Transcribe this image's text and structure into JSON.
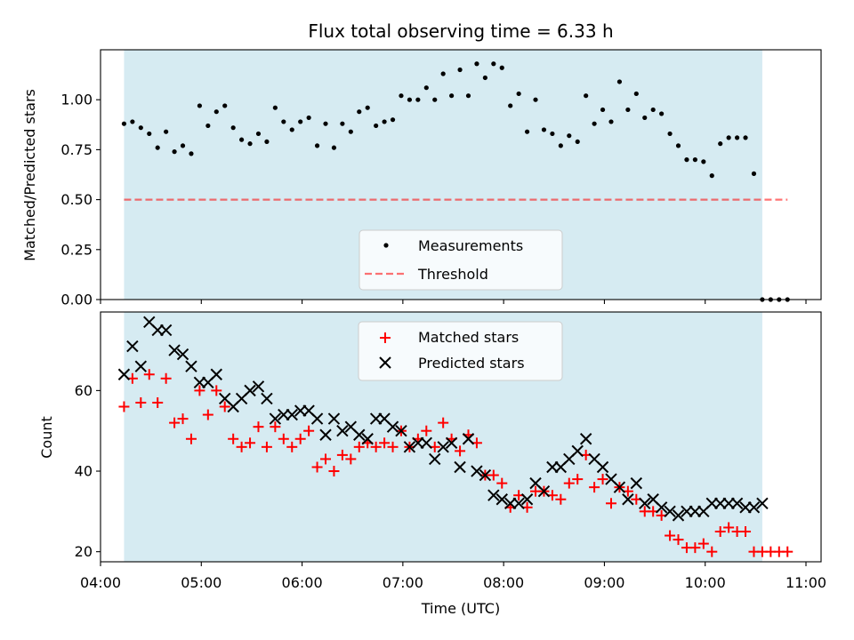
{
  "chart_data": [
    {
      "type": "scatter",
      "title": "Flux total observing time = 6.33 h",
      "ylabel": "Matched/Predicted stars",
      "xlabel": "",
      "x_unit": "time_utc",
      "xlim": [
        "04:00",
        "11:09"
      ],
      "ylim": [
        0,
        1.25
      ],
      "y_ticks": [
        "0.00",
        "0.25",
        "0.50",
        "0.75",
        "1.00"
      ],
      "x_ticks": [
        "04:00",
        "05:00",
        "06:00",
        "07:00",
        "08:00",
        "09:00",
        "10:00",
        "11:00"
      ],
      "observing_window": [
        "04:14",
        "10:34"
      ],
      "observing_window_color": "#add8e6",
      "grid": false,
      "legend": "bottom-center",
      "series": [
        {
          "name": "Measurements",
          "kind": "scatter",
          "marker": "dot",
          "color": "#000000",
          "x": [
            "04:14",
            "04:19",
            "04:24",
            "04:29",
            "04:34",
            "04:39",
            "04:44",
            "04:49",
            "04:54",
            "04:59",
            "05:04",
            "05:09",
            "05:14",
            "05:19",
            "05:24",
            "05:29",
            "05:34",
            "05:39",
            "05:44",
            "05:49",
            "05:54",
            "05:59",
            "06:04",
            "06:09",
            "06:14",
            "06:19",
            "06:24",
            "06:29",
            "06:34",
            "06:39",
            "06:44",
            "06:49",
            "06:54",
            "06:59",
            "07:04",
            "07:09",
            "07:14",
            "07:19",
            "07:24",
            "07:29",
            "07:34",
            "07:39",
            "07:44",
            "07:49",
            "07:54",
            "07:59",
            "08:04",
            "08:09",
            "08:14",
            "08:19",
            "08:24",
            "08:29",
            "08:34",
            "08:39",
            "08:44",
            "08:49",
            "08:54",
            "08:59",
            "09:04",
            "09:09",
            "09:14",
            "09:19",
            "09:24",
            "09:29",
            "09:34",
            "09:39",
            "09:44",
            "09:49",
            "09:54",
            "09:59",
            "10:04",
            "10:09",
            "10:14",
            "10:19",
            "10:24",
            "10:29",
            "10:34",
            "10:39",
            "10:44",
            "10:49"
          ],
          "y": [
            0.88,
            0.89,
            0.86,
            0.83,
            0.76,
            0.84,
            0.74,
            0.77,
            0.73,
            0.97,
            0.87,
            0.94,
            0.97,
            0.86,
            0.8,
            0.78,
            0.83,
            0.79,
            0.96,
            0.89,
            0.85,
            0.89,
            0.91,
            0.77,
            0.88,
            0.76,
            0.88,
            0.84,
            0.94,
            0.96,
            0.87,
            0.89,
            0.9,
            1.02,
            1.0,
            1.0,
            1.06,
            1.0,
            1.13,
            1.02,
            1.15,
            1.02,
            1.18,
            1.11,
            1.18,
            1.16,
            0.97,
            1.03,
            0.84,
            1.0,
            0.85,
            0.83,
            0.77,
            0.82,
            0.79,
            1.02,
            0.88,
            0.95,
            0.89,
            1.09,
            0.95,
            1.03,
            0.91,
            0.95,
            0.93,
            0.83,
            0.77,
            0.7,
            0.7,
            0.69,
            0.62,
            0.78,
            0.81,
            0.81,
            0.81,
            0.63,
            0.0,
            0.0,
            0.0,
            0.0
          ]
        },
        {
          "name": "Threshold",
          "kind": "line",
          "style": "dashed",
          "color": "#ff0000",
          "x": [
            "04:14",
            "10:49"
          ],
          "y": [
            0.5,
            0.5
          ]
        }
      ]
    },
    {
      "type": "scatter",
      "title": "",
      "ylabel": "Count",
      "xlabel": "Time (UTC)",
      "x_unit": "time_utc",
      "xlim": [
        "04:00",
        "11:09"
      ],
      "ylim": [
        17.5,
        79.5
      ],
      "y_ticks": [
        "20",
        "40",
        "60"
      ],
      "x_ticks": [
        "04:00",
        "05:00",
        "06:00",
        "07:00",
        "08:00",
        "09:00",
        "10:00",
        "11:00"
      ],
      "observing_window": [
        "04:14",
        "10:34"
      ],
      "observing_window_color": "#add8e6",
      "grid": false,
      "legend": "top-center",
      "series": [
        {
          "name": "Matched stars",
          "marker": "plus",
          "color": "#ff0000",
          "x": [
            "04:14",
            "04:19",
            "04:24",
            "04:29",
            "04:34",
            "04:39",
            "04:44",
            "04:49",
            "04:54",
            "04:59",
            "05:04",
            "05:09",
            "05:14",
            "05:19",
            "05:24",
            "05:29",
            "05:34",
            "05:39",
            "05:44",
            "05:49",
            "05:54",
            "05:59",
            "06:04",
            "06:09",
            "06:14",
            "06:19",
            "06:24",
            "06:29",
            "06:34",
            "06:39",
            "06:44",
            "06:49",
            "06:54",
            "06:59",
            "07:04",
            "07:09",
            "07:14",
            "07:19",
            "07:24",
            "07:29",
            "07:34",
            "07:39",
            "07:44",
            "07:49",
            "07:54",
            "07:59",
            "08:04",
            "08:09",
            "08:14",
            "08:19",
            "08:24",
            "08:29",
            "08:34",
            "08:39",
            "08:44",
            "08:49",
            "08:54",
            "08:59",
            "09:04",
            "09:09",
            "09:14",
            "09:19",
            "09:24",
            "09:29",
            "09:34",
            "09:39",
            "09:44",
            "09:49",
            "09:54",
            "09:59",
            "10:04",
            "10:09",
            "10:14",
            "10:19",
            "10:24",
            "10:29",
            "10:34",
            "10:39",
            "10:44",
            "10:49"
          ],
          "y": [
            56,
            63,
            57,
            64,
            57,
            63,
            52,
            53,
            48,
            60,
            54,
            60,
            56,
            48,
            46,
            47,
            51,
            46,
            51,
            48,
            46,
            48,
            50,
            41,
            43,
            40,
            44,
            43,
            46,
            47,
            46,
            47,
            46,
            50,
            46,
            48,
            50,
            46,
            52,
            48,
            45,
            49,
            47,
            39,
            39,
            37,
            31,
            34,
            31,
            35,
            35,
            34,
            33,
            37,
            38,
            44,
            36,
            38,
            32,
            36,
            35,
            33,
            30,
            30,
            29,
            24,
            23,
            21,
            21,
            22,
            20,
            25,
            26,
            25,
            25,
            20,
            20,
            20,
            20,
            20
          ]
        },
        {
          "name": "Predicted stars",
          "marker": "x",
          "color": "#000000",
          "x": [
            "04:14",
            "04:19",
            "04:24",
            "04:29",
            "04:34",
            "04:39",
            "04:44",
            "04:49",
            "04:54",
            "04:59",
            "05:04",
            "05:09",
            "05:14",
            "05:19",
            "05:24",
            "05:29",
            "05:34",
            "05:39",
            "05:44",
            "05:49",
            "05:54",
            "05:59",
            "06:04",
            "06:09",
            "06:14",
            "06:19",
            "06:24",
            "06:29",
            "06:34",
            "06:39",
            "06:44",
            "06:49",
            "06:54",
            "06:59",
            "07:04",
            "07:09",
            "07:14",
            "07:19",
            "07:24",
            "07:29",
            "07:34",
            "07:39",
            "07:44",
            "07:49",
            "07:54",
            "07:59",
            "08:04",
            "08:09",
            "08:14",
            "08:19",
            "08:24",
            "08:29",
            "08:34",
            "08:39",
            "08:44",
            "08:49",
            "08:54",
            "08:59",
            "09:04",
            "09:09",
            "09:14",
            "09:19",
            "09:24",
            "09:29",
            "09:34",
            "09:39",
            "09:44",
            "09:49",
            "09:54",
            "09:59",
            "10:04",
            "10:09",
            "10:14",
            "10:19",
            "10:24",
            "10:29",
            "10:34"
          ],
          "y": [
            64,
            71,
            66,
            77,
            75,
            75,
            70,
            69,
            66,
            62,
            62,
            64,
            58,
            56,
            58,
            60,
            61,
            58,
            53,
            54,
            54,
            55,
            55,
            53,
            49,
            53,
            50,
            51,
            49,
            48,
            53,
            53,
            51,
            50,
            46,
            47,
            47,
            43,
            46,
            47,
            41,
            48,
            40,
            39,
            34,
            33,
            32,
            32,
            33,
            37,
            35,
            41,
            41,
            43,
            45,
            48,
            43,
            41,
            38,
            36,
            33,
            37,
            32,
            33,
            31,
            30,
            29,
            30,
            30,
            30,
            32,
            32,
            32,
            32,
            31,
            31,
            32
          ]
        }
      ]
    }
  ]
}
